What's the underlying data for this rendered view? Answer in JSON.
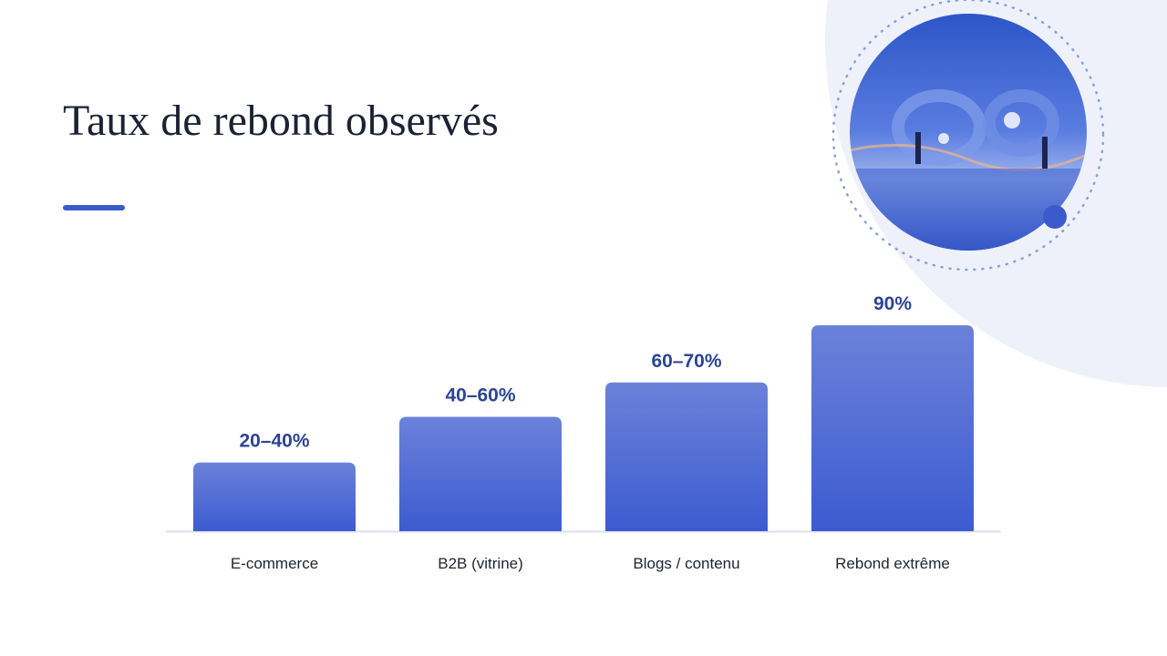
{
  "chart_data": {
    "type": "bar",
    "title": "Taux de rebond observés",
    "categories": [
      "E-commerce",
      "B2B (vitrine)",
      "Blogs / contenu",
      "Rebond extrême"
    ],
    "values": [
      30,
      50,
      65,
      90
    ],
    "value_labels": [
      "20–40%",
      "40–60%",
      "60–70%",
      "90%"
    ],
    "color": "#3d5bd0"
  }
}
